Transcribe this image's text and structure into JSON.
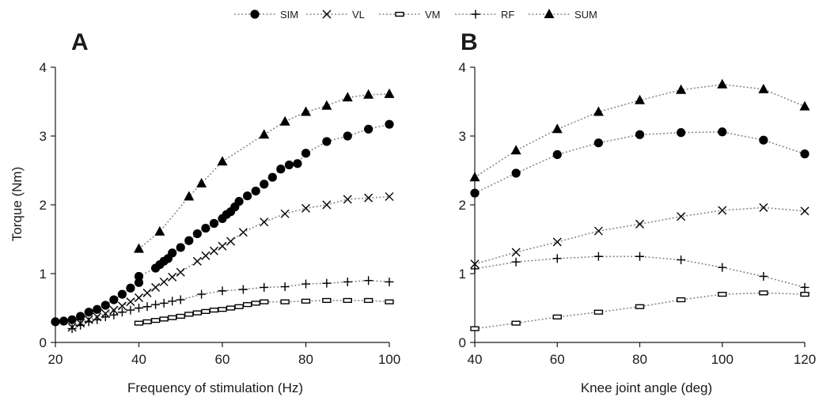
{
  "legend": [
    {
      "name": "SIM",
      "marker": "circle"
    },
    {
      "name": "VL",
      "marker": "x"
    },
    {
      "name": "VM",
      "marker": "rect"
    },
    {
      "name": "RF",
      "marker": "plus"
    },
    {
      "name": "SUM",
      "marker": "triangle"
    }
  ],
  "colors": {
    "markers": "#000000",
    "lines": "#8a8a8a",
    "axes": "#1a1a1a"
  },
  "chart_data": [
    {
      "type": "line",
      "panel": "A",
      "xlabel": "Frequency of stimulation (Hz)",
      "ylabel": "Torque (Nm)",
      "xlim": [
        20,
        100
      ],
      "ylim": [
        0,
        4
      ],
      "xticks": [
        20,
        40,
        60,
        80,
        100
      ],
      "yticks": [
        0,
        1,
        2,
        3,
        4
      ],
      "series": [
        {
          "name": "SIM",
          "x": [
            20,
            22,
            24,
            26,
            28,
            30,
            32,
            34,
            36,
            38,
            40,
            40,
            44,
            45,
            46,
            47,
            48,
            50,
            52,
            54,
            56,
            58,
            60,
            61,
            62,
            63,
            64,
            66,
            68,
            70,
            72,
            74,
            76,
            78,
            80,
            85,
            90,
            95,
            100
          ],
          "y": [
            0.3,
            0.31,
            0.33,
            0.38,
            0.44,
            0.48,
            0.54,
            0.62,
            0.7,
            0.79,
            0.87,
            0.96,
            1.08,
            1.13,
            1.18,
            1.22,
            1.3,
            1.38,
            1.48,
            1.58,
            1.66,
            1.73,
            1.8,
            1.86,
            1.9,
            1.97,
            2.05,
            2.13,
            2.2,
            2.3,
            2.4,
            2.52,
            2.58,
            2.6,
            2.75,
            2.92,
            3.0,
            3.1,
            3.17
          ]
        },
        {
          "name": "VL",
          "x": [
            24,
            26,
            28,
            30,
            32,
            34,
            36,
            38,
            40,
            42,
            44,
            46,
            48,
            50,
            54,
            56,
            58,
            60,
            62,
            65,
            70,
            75,
            80,
            85,
            90,
            95,
            100
          ],
          "y": [
            0.22,
            0.28,
            0.33,
            0.37,
            0.42,
            0.47,
            0.53,
            0.59,
            0.65,
            0.72,
            0.8,
            0.88,
            0.95,
            1.02,
            1.18,
            1.26,
            1.33,
            1.4,
            1.47,
            1.6,
            1.75,
            1.87,
            1.95,
            2.0,
            2.08,
            2.1,
            2.12
          ]
        },
        {
          "name": "VM",
          "x": [
            40,
            42,
            44,
            46,
            48,
            50,
            52,
            54,
            56,
            58,
            60,
            62,
            64,
            66,
            68,
            70,
            75,
            80,
            85,
            90,
            95,
            100
          ],
          "y": [
            0.28,
            0.3,
            0.32,
            0.34,
            0.36,
            0.38,
            0.41,
            0.43,
            0.45,
            0.47,
            0.48,
            0.5,
            0.52,
            0.55,
            0.57,
            0.59,
            0.59,
            0.6,
            0.61,
            0.61,
            0.61,
            0.59
          ]
        },
        {
          "name": "RF",
          "x": [
            24,
            26,
            28,
            30,
            32,
            34,
            36,
            38,
            40,
            42,
            44,
            46,
            48,
            50,
            55,
            60,
            65,
            70,
            75,
            80,
            85,
            90,
            95,
            100
          ],
          "y": [
            0.2,
            0.25,
            0.3,
            0.33,
            0.37,
            0.4,
            0.44,
            0.47,
            0.5,
            0.52,
            0.55,
            0.57,
            0.6,
            0.62,
            0.7,
            0.75,
            0.77,
            0.8,
            0.81,
            0.85,
            0.86,
            0.88,
            0.9,
            0.88
          ]
        },
        {
          "name": "SUM",
          "x": [
            40,
            45,
            52,
            55,
            60,
            70,
            75,
            80,
            85,
            90,
            95,
            100
          ],
          "y": [
            1.36,
            1.61,
            2.12,
            2.31,
            2.63,
            3.02,
            3.21,
            3.35,
            3.44,
            3.56,
            3.6,
            3.61
          ]
        }
      ]
    },
    {
      "type": "line",
      "panel": "B",
      "xlabel": "Knee joint angle (deg)",
      "ylabel": "",
      "xlim": [
        40,
        120
      ],
      "ylim": [
        0,
        4
      ],
      "xticks": [
        40,
        60,
        80,
        100,
        120
      ],
      "yticks": [
        0,
        1,
        2,
        3,
        4
      ],
      "series": [
        {
          "name": "SIM",
          "x": [
            40,
            50,
            60,
            70,
            80,
            90,
            100,
            110,
            120
          ],
          "y": [
            2.17,
            2.46,
            2.73,
            2.9,
            3.02,
            3.05,
            3.06,
            2.94,
            2.74
          ]
        },
        {
          "name": "VL",
          "x": [
            40,
            50,
            60,
            70,
            80,
            90,
            100,
            110,
            120
          ],
          "y": [
            1.14,
            1.31,
            1.46,
            1.62,
            1.72,
            1.83,
            1.92,
            1.96,
            1.91
          ]
        },
        {
          "name": "VM",
          "x": [
            40,
            50,
            60,
            70,
            80,
            90,
            100,
            110,
            120
          ],
          "y": [
            0.2,
            0.28,
            0.37,
            0.44,
            0.52,
            0.62,
            0.7,
            0.72,
            0.7
          ]
        },
        {
          "name": "RF",
          "x": [
            40,
            50,
            60,
            70,
            80,
            90,
            100,
            110,
            120
          ],
          "y": [
            1.07,
            1.17,
            1.22,
            1.25,
            1.25,
            1.2,
            1.09,
            0.96,
            0.8
          ]
        },
        {
          "name": "SUM",
          "x": [
            40,
            50,
            60,
            70,
            80,
            90,
            100,
            110,
            120
          ],
          "y": [
            2.4,
            2.79,
            3.1,
            3.35,
            3.52,
            3.67,
            3.75,
            3.68,
            3.43
          ]
        }
      ]
    }
  ]
}
